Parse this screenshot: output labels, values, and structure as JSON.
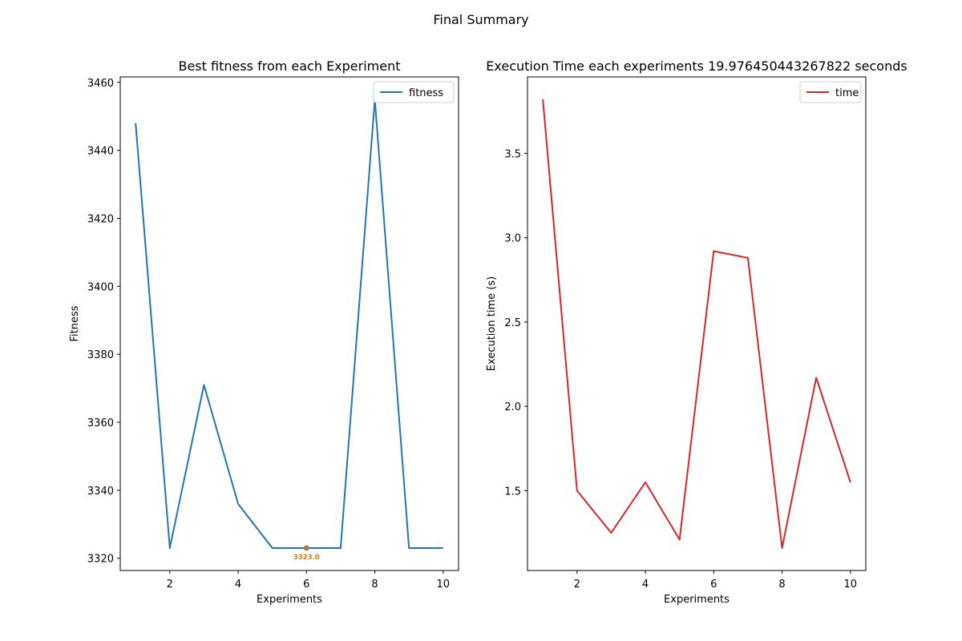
{
  "figure": {
    "suptitle": "Final Summary"
  },
  "chart_data": [
    {
      "type": "line",
      "title": "Best fitness from each Experiment",
      "xlabel": "Experiments",
      "ylabel": "Fitness",
      "x": [
        1,
        2,
        3,
        4,
        5,
        6,
        7,
        8,
        9,
        10
      ],
      "series": [
        {
          "name": "fitness",
          "color": "#1f77b4",
          "values": [
            3448,
            3323,
            3371,
            3336,
            3323,
            3323,
            3323,
            3455,
            3323,
            3323
          ]
        }
      ],
      "annotation": {
        "x": 6,
        "y": 3323,
        "label": "3323.0",
        "color": "#e07b20",
        "marker_color": "#a07a50"
      },
      "xlim": [
        0.55,
        10.45
      ],
      "ylim": [
        3316.4,
        3461.6
      ],
      "xticks": [
        2,
        4,
        6,
        8,
        10
      ],
      "yticks": [
        3320,
        3340,
        3360,
        3380,
        3400,
        3420,
        3440,
        3460
      ],
      "legend": "top-right",
      "grid": false
    },
    {
      "type": "line",
      "title": "Execution Time each experiments 19.976450443267822 seconds",
      "xlabel": "Experiments",
      "ylabel": "Execution time (s)",
      "x": [
        1,
        2,
        3,
        4,
        5,
        6,
        7,
        8,
        9,
        10
      ],
      "series": [
        {
          "name": "time",
          "color": "#d62728",
          "values": [
            3.82,
            1.5,
            1.25,
            1.55,
            1.21,
            2.92,
            2.88,
            1.16,
            2.17,
            1.55
          ]
        }
      ],
      "xlim": [
        0.55,
        10.45
      ],
      "ylim": [
        1.027,
        3.953
      ],
      "xticks": [
        2,
        4,
        6,
        8,
        10
      ],
      "yticks": [
        1.5,
        2.0,
        2.5,
        3.0,
        3.5
      ],
      "ytick_labels": [
        "1.5",
        "2.0",
        "2.5",
        "3.0",
        "3.5"
      ],
      "legend": "top-right",
      "grid": false
    }
  ]
}
